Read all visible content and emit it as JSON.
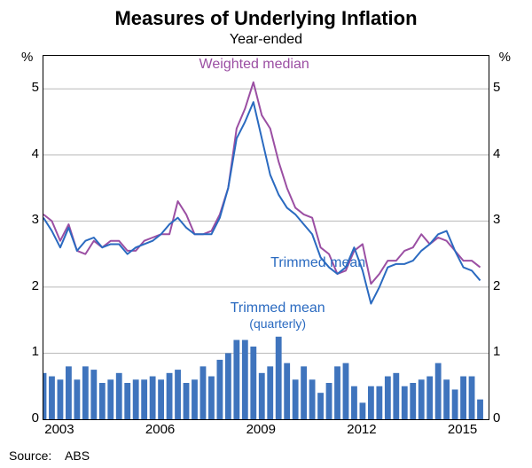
{
  "title": "Measures of Underlying Inflation",
  "subtitle": "Year-ended",
  "source_label": "Source:",
  "source_value": "ABS",
  "y_axis": {
    "unit": "%",
    "min": 0,
    "max": 5.5,
    "ticks": [
      0,
      1,
      2,
      3,
      4,
      5
    ],
    "grid_color": "#b9b9b9"
  },
  "x_axis": {
    "start_year": 2002.0,
    "end_year": 2015.25,
    "tick_years": [
      2003,
      2006,
      2009,
      2012,
      2015
    ]
  },
  "series_labels": {
    "weighted_median": {
      "text": "Weighted median",
      "color": "#9b4fa3",
      "x_year": 2008.3,
      "y_val": 5.35
    },
    "trimmed_mean": {
      "text": "Trimmed mean",
      "color": "#2a6ac0",
      "x_year": 2010.2,
      "y_val": 2.35
    },
    "trimmed_quarterly": {
      "text": "Trimmed mean",
      "sub": "(quarterly)",
      "color": "#2a6ac0",
      "x_year": 2009.0,
      "y_val": 1.55
    }
  },
  "colors": {
    "weighted_median": "#9b4fa3",
    "trimmed_mean": "#2a6ac0",
    "bars": "#3f74bd",
    "background": "#ffffff",
    "axis": "#000000"
  },
  "line_width": 2,
  "bar_width_years": 0.18,
  "weighted_median": [
    [
      2002.0,
      3.1
    ],
    [
      2002.25,
      3.0
    ],
    [
      2002.5,
      2.7
    ],
    [
      2002.75,
      2.95
    ],
    [
      2003.0,
      2.55
    ],
    [
      2003.25,
      2.5
    ],
    [
      2003.5,
      2.7
    ],
    [
      2003.75,
      2.6
    ],
    [
      2004.0,
      2.7
    ],
    [
      2004.25,
      2.7
    ],
    [
      2004.5,
      2.55
    ],
    [
      2004.75,
      2.55
    ],
    [
      2005.0,
      2.7
    ],
    [
      2005.25,
      2.75
    ],
    [
      2005.5,
      2.8
    ],
    [
      2005.75,
      2.8
    ],
    [
      2006.0,
      3.3
    ],
    [
      2006.25,
      3.1
    ],
    [
      2006.5,
      2.8
    ],
    [
      2006.75,
      2.8
    ],
    [
      2007.0,
      2.85
    ],
    [
      2007.25,
      3.1
    ],
    [
      2007.5,
      3.5
    ],
    [
      2007.75,
      4.4
    ],
    [
      2008.0,
      4.7
    ],
    [
      2008.25,
      5.1
    ],
    [
      2008.5,
      4.6
    ],
    [
      2008.75,
      4.4
    ],
    [
      2009.0,
      3.9
    ],
    [
      2009.25,
      3.5
    ],
    [
      2009.5,
      3.2
    ],
    [
      2009.75,
      3.1
    ],
    [
      2010.0,
      3.05
    ],
    [
      2010.25,
      2.6
    ],
    [
      2010.5,
      2.5
    ],
    [
      2010.75,
      2.2
    ],
    [
      2011.0,
      2.25
    ],
    [
      2011.25,
      2.55
    ],
    [
      2011.5,
      2.65
    ],
    [
      2011.75,
      2.05
    ],
    [
      2012.0,
      2.2
    ],
    [
      2012.25,
      2.4
    ],
    [
      2012.5,
      2.4
    ],
    [
      2012.75,
      2.55
    ],
    [
      2013.0,
      2.6
    ],
    [
      2013.25,
      2.8
    ],
    [
      2013.5,
      2.65
    ],
    [
      2013.75,
      2.75
    ],
    [
      2014.0,
      2.7
    ],
    [
      2014.25,
      2.55
    ],
    [
      2014.5,
      2.4
    ],
    [
      2014.75,
      2.4
    ],
    [
      2015.0,
      2.3
    ]
  ],
  "trimmed_mean": [
    [
      2002.0,
      3.05
    ],
    [
      2002.25,
      2.85
    ],
    [
      2002.5,
      2.6
    ],
    [
      2002.75,
      2.9
    ],
    [
      2003.0,
      2.55
    ],
    [
      2003.25,
      2.7
    ],
    [
      2003.5,
      2.75
    ],
    [
      2003.75,
      2.6
    ],
    [
      2004.0,
      2.65
    ],
    [
      2004.25,
      2.65
    ],
    [
      2004.5,
      2.5
    ],
    [
      2004.75,
      2.6
    ],
    [
      2005.0,
      2.65
    ],
    [
      2005.25,
      2.7
    ],
    [
      2005.5,
      2.8
    ],
    [
      2005.75,
      2.95
    ],
    [
      2006.0,
      3.05
    ],
    [
      2006.25,
      2.9
    ],
    [
      2006.5,
      2.8
    ],
    [
      2006.75,
      2.8
    ],
    [
      2007.0,
      2.8
    ],
    [
      2007.25,
      3.05
    ],
    [
      2007.5,
      3.5
    ],
    [
      2007.75,
      4.25
    ],
    [
      2008.0,
      4.5
    ],
    [
      2008.25,
      4.8
    ],
    [
      2008.5,
      4.25
    ],
    [
      2008.75,
      3.7
    ],
    [
      2009.0,
      3.4
    ],
    [
      2009.25,
      3.2
    ],
    [
      2009.5,
      3.1
    ],
    [
      2009.75,
      2.95
    ],
    [
      2010.0,
      2.8
    ],
    [
      2010.25,
      2.45
    ],
    [
      2010.5,
      2.3
    ],
    [
      2010.75,
      2.2
    ],
    [
      2011.0,
      2.3
    ],
    [
      2011.25,
      2.6
    ],
    [
      2011.5,
      2.25
    ],
    [
      2011.75,
      1.75
    ],
    [
      2012.0,
      2.0
    ],
    [
      2012.25,
      2.3
    ],
    [
      2012.5,
      2.35
    ],
    [
      2012.75,
      2.35
    ],
    [
      2013.0,
      2.4
    ],
    [
      2013.25,
      2.55
    ],
    [
      2013.5,
      2.65
    ],
    [
      2013.75,
      2.8
    ],
    [
      2014.0,
      2.85
    ],
    [
      2014.25,
      2.55
    ],
    [
      2014.5,
      2.3
    ],
    [
      2014.75,
      2.25
    ],
    [
      2015.0,
      2.1
    ]
  ],
  "trimmed_quarterly_bars": [
    [
      2002.0,
      0.7
    ],
    [
      2002.25,
      0.65
    ],
    [
      2002.5,
      0.6
    ],
    [
      2002.75,
      0.8
    ],
    [
      2003.0,
      0.6
    ],
    [
      2003.25,
      0.8
    ],
    [
      2003.5,
      0.75
    ],
    [
      2003.75,
      0.55
    ],
    [
      2004.0,
      0.6
    ],
    [
      2004.25,
      0.7
    ],
    [
      2004.5,
      0.55
    ],
    [
      2004.75,
      0.6
    ],
    [
      2005.0,
      0.6
    ],
    [
      2005.25,
      0.65
    ],
    [
      2005.5,
      0.6
    ],
    [
      2005.75,
      0.7
    ],
    [
      2006.0,
      0.75
    ],
    [
      2006.25,
      0.55
    ],
    [
      2006.5,
      0.6
    ],
    [
      2006.75,
      0.8
    ],
    [
      2007.0,
      0.65
    ],
    [
      2007.25,
      0.9
    ],
    [
      2007.5,
      1.0
    ],
    [
      2007.75,
      1.2
    ],
    [
      2008.0,
      1.2
    ],
    [
      2008.25,
      1.1
    ],
    [
      2008.5,
      0.7
    ],
    [
      2008.75,
      0.8
    ],
    [
      2009.0,
      1.25
    ],
    [
      2009.25,
      0.85
    ],
    [
      2009.5,
      0.6
    ],
    [
      2009.75,
      0.8
    ],
    [
      2010.0,
      0.6
    ],
    [
      2010.25,
      0.4
    ],
    [
      2010.5,
      0.55
    ],
    [
      2010.75,
      0.8
    ],
    [
      2011.0,
      0.85
    ],
    [
      2011.25,
      0.5
    ],
    [
      2011.5,
      0.25
    ],
    [
      2011.75,
      0.5
    ],
    [
      2012.0,
      0.5
    ],
    [
      2012.25,
      0.65
    ],
    [
      2012.5,
      0.7
    ],
    [
      2012.75,
      0.5
    ],
    [
      2013.0,
      0.55
    ],
    [
      2013.25,
      0.6
    ],
    [
      2013.5,
      0.65
    ],
    [
      2013.75,
      0.85
    ],
    [
      2014.0,
      0.6
    ],
    [
      2014.25,
      0.45
    ],
    [
      2014.5,
      0.65
    ],
    [
      2014.75,
      0.65
    ],
    [
      2015.0,
      0.3
    ]
  ]
}
